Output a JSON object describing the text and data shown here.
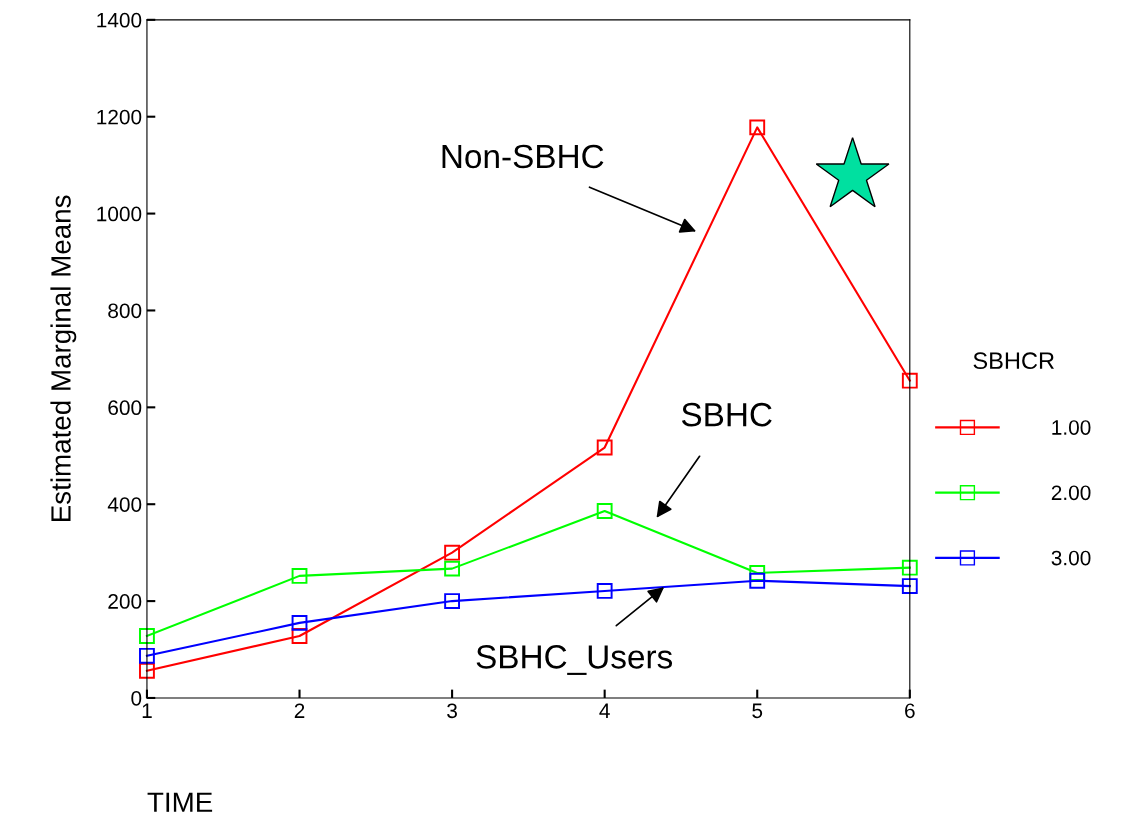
{
  "chart_data": {
    "type": "line",
    "xlabel": "TIME",
    "ylabel": "Estimated Marginal Means",
    "legend_title": "SBHCR",
    "x": [
      1,
      2,
      3,
      4,
      5,
      6
    ],
    "xlim": [
      1,
      6
    ],
    "xticks": [
      1,
      2,
      3,
      4,
      5,
      6
    ],
    "ylim": [
      0,
      1400
    ],
    "yticks": [
      0,
      200,
      400,
      600,
      800,
      1000,
      1200,
      1400
    ],
    "series": [
      {
        "name": "1.00",
        "color": "#ff0000",
        "values": [
          56,
          128,
          300,
          517,
          1178,
          655
        ]
      },
      {
        "name": "2.00",
        "color": "#00ff00",
        "values": [
          128,
          252,
          267,
          386,
          258,
          269
        ]
      },
      {
        "name": "3.00",
        "color": "#0000ff",
        "values": [
          87,
          155,
          200,
          221,
          242,
          231
        ]
      }
    ],
    "annotations": [
      "Non-SBHC",
      "SBHC",
      {
        "text": "SBHC_Users",
        "x": 4.39,
        "y": 229
      }
    ],
    "grid": false,
    "legend": "right",
    "marker": "square",
    "line_style": "solid"
  }
}
